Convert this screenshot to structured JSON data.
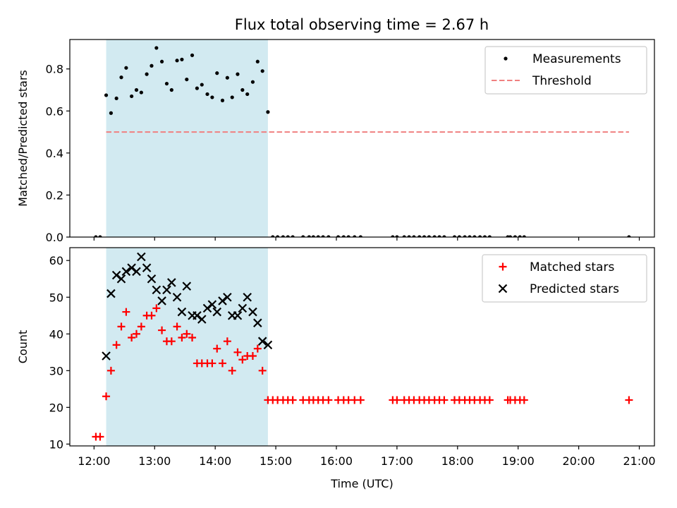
{
  "title": "Flux total observing time = 2.67 h",
  "colors": {
    "span": "#add8e6",
    "measurement": "#000000",
    "threshold": "#f08080",
    "matched": "#ff0000",
    "predicted": "#000000"
  },
  "chart_data": [
    {
      "type": "scatter",
      "ylabel": "Matched/Predicted stars",
      "xlim": [
        11.6,
        21.25
      ],
      "ylim": [
        0,
        0.94
      ],
      "yticks": [
        0.0,
        0.2,
        0.4,
        0.6,
        0.8
      ],
      "ytick_labels": [
        "0.0",
        "0.2",
        "0.4",
        "0.6",
        "0.8"
      ],
      "shaded_span": [
        12.2,
        14.87
      ],
      "threshold": {
        "y": 0.5,
        "x": [
          12.2,
          20.83
        ],
        "style": "dashed"
      },
      "legend": {
        "position": "top-right",
        "entries": [
          "Measurements",
          "Threshold"
        ]
      },
      "series": [
        {
          "name": "Measurements",
          "marker": "dot",
          "points": [
            [
              12.03,
              0
            ],
            [
              12.1,
              0
            ],
            [
              12.2,
              0.675
            ],
            [
              12.28,
              0.59
            ],
            [
              12.37,
              0.66
            ],
            [
              12.45,
              0.76
            ],
            [
              12.53,
              0.805
            ],
            [
              12.62,
              0.67
            ],
            [
              12.7,
              0.7
            ],
            [
              12.78,
              0.688
            ],
            [
              12.87,
              0.775
            ],
            [
              12.95,
              0.815
            ],
            [
              13.03,
              0.9
            ],
            [
              13.12,
              0.835
            ],
            [
              13.2,
              0.73
            ],
            [
              13.28,
              0.7
            ],
            [
              13.37,
              0.84
            ],
            [
              13.45,
              0.845
            ],
            [
              13.53,
              0.75
            ],
            [
              13.62,
              0.865
            ],
            [
              13.7,
              0.708
            ],
            [
              13.78,
              0.725
            ],
            [
              13.87,
              0.68
            ],
            [
              13.95,
              0.665
            ],
            [
              14.03,
              0.78
            ],
            [
              14.12,
              0.65
            ],
            [
              14.2,
              0.758
            ],
            [
              14.28,
              0.665
            ],
            [
              14.37,
              0.775
            ],
            [
              14.45,
              0.7
            ],
            [
              14.53,
              0.68
            ],
            [
              14.62,
              0.738
            ],
            [
              14.7,
              0.835
            ],
            [
              14.78,
              0.79
            ],
            [
              14.87,
              0.595
            ],
            [
              14.95,
              0
            ],
            [
              15.03,
              0
            ],
            [
              15.12,
              0
            ],
            [
              15.2,
              0
            ],
            [
              15.28,
              0
            ],
            [
              15.45,
              0
            ],
            [
              15.55,
              0
            ],
            [
              15.62,
              0
            ],
            [
              15.7,
              0
            ],
            [
              15.78,
              0
            ],
            [
              15.87,
              0
            ],
            [
              16.03,
              0
            ],
            [
              16.12,
              0
            ],
            [
              16.2,
              0
            ],
            [
              16.3,
              0
            ],
            [
              16.4,
              0
            ],
            [
              16.93,
              0
            ],
            [
              17.0,
              0
            ],
            [
              17.12,
              0
            ],
            [
              17.2,
              0
            ],
            [
              17.28,
              0
            ],
            [
              17.37,
              0
            ],
            [
              17.45,
              0
            ],
            [
              17.53,
              0
            ],
            [
              17.62,
              0
            ],
            [
              17.7,
              0
            ],
            [
              17.78,
              0
            ],
            [
              17.95,
              0
            ],
            [
              18.03,
              0
            ],
            [
              18.12,
              0
            ],
            [
              18.2,
              0
            ],
            [
              18.28,
              0
            ],
            [
              18.37,
              0
            ],
            [
              18.45,
              0
            ],
            [
              18.53,
              0
            ],
            [
              18.83,
              0
            ],
            [
              18.87,
              0
            ],
            [
              18.95,
              0
            ],
            [
              19.03,
              0
            ],
            [
              19.1,
              0
            ],
            [
              20.83,
              0
            ]
          ]
        }
      ]
    },
    {
      "type": "scatter",
      "xlabel": "Time (UTC)",
      "ylabel": "Count",
      "xlim": [
        11.6,
        21.25
      ],
      "ylim": [
        9.5,
        63.5
      ],
      "xticks": [
        12,
        13,
        14,
        15,
        16,
        17,
        18,
        19,
        20,
        21
      ],
      "xtick_labels": [
        "12:00",
        "13:00",
        "14:00",
        "15:00",
        "16:00",
        "17:00",
        "18:00",
        "19:00",
        "20:00",
        "21:00"
      ],
      "yticks": [
        10,
        20,
        30,
        40,
        50,
        60
      ],
      "ytick_labels": [
        "10",
        "20",
        "30",
        "40",
        "50",
        "60"
      ],
      "shaded_span": [
        12.2,
        14.87
      ],
      "legend": {
        "position": "top-right",
        "entries": [
          "Matched stars",
          "Predicted stars"
        ]
      },
      "series": [
        {
          "name": "Matched stars",
          "marker": "plus",
          "points": [
            [
              12.03,
              12
            ],
            [
              12.1,
              12
            ],
            [
              12.2,
              23
            ],
            [
              12.28,
              30
            ],
            [
              12.37,
              37
            ],
            [
              12.45,
              42
            ],
            [
              12.53,
              46
            ],
            [
              12.62,
              39
            ],
            [
              12.7,
              40
            ],
            [
              12.78,
              42
            ],
            [
              12.87,
              45
            ],
            [
              12.95,
              45
            ],
            [
              13.03,
              47
            ],
            [
              13.12,
              41
            ],
            [
              13.2,
              38
            ],
            [
              13.28,
              38
            ],
            [
              13.37,
              42
            ],
            [
              13.45,
              39
            ],
            [
              13.53,
              40
            ],
            [
              13.62,
              39
            ],
            [
              13.7,
              32
            ],
            [
              13.78,
              32
            ],
            [
              13.87,
              32
            ],
            [
              13.95,
              32
            ],
            [
              14.03,
              36
            ],
            [
              14.12,
              32
            ],
            [
              14.2,
              38
            ],
            [
              14.28,
              30
            ],
            [
              14.37,
              35
            ],
            [
              14.45,
              33
            ],
            [
              14.53,
              34
            ],
            [
              14.62,
              34
            ],
            [
              14.7,
              36
            ],
            [
              14.78,
              30
            ],
            [
              14.87,
              22
            ],
            [
              14.95,
              22
            ],
            [
              15.03,
              22
            ],
            [
              15.12,
              22
            ],
            [
              15.2,
              22
            ],
            [
              15.28,
              22
            ],
            [
              15.45,
              22
            ],
            [
              15.55,
              22
            ],
            [
              15.62,
              22
            ],
            [
              15.7,
              22
            ],
            [
              15.78,
              22
            ],
            [
              15.87,
              22
            ],
            [
              16.03,
              22
            ],
            [
              16.12,
              22
            ],
            [
              16.2,
              22
            ],
            [
              16.3,
              22
            ],
            [
              16.4,
              22
            ],
            [
              16.93,
              22
            ],
            [
              17.0,
              22
            ],
            [
              17.12,
              22
            ],
            [
              17.2,
              22
            ],
            [
              17.28,
              22
            ],
            [
              17.37,
              22
            ],
            [
              17.45,
              22
            ],
            [
              17.53,
              22
            ],
            [
              17.62,
              22
            ],
            [
              17.7,
              22
            ],
            [
              17.78,
              22
            ],
            [
              17.95,
              22
            ],
            [
              18.03,
              22
            ],
            [
              18.12,
              22
            ],
            [
              18.2,
              22
            ],
            [
              18.28,
              22
            ],
            [
              18.37,
              22
            ],
            [
              18.45,
              22
            ],
            [
              18.53,
              22
            ],
            [
              18.83,
              22
            ],
            [
              18.87,
              22
            ],
            [
              18.95,
              22
            ],
            [
              19.03,
              22
            ],
            [
              19.1,
              22
            ],
            [
              20.83,
              22
            ]
          ]
        },
        {
          "name": "Predicted stars",
          "marker": "x",
          "points": [
            [
              12.2,
              34
            ],
            [
              12.28,
              51
            ],
            [
              12.37,
              56
            ],
            [
              12.45,
              55
            ],
            [
              12.53,
              57
            ],
            [
              12.62,
              58
            ],
            [
              12.7,
              57
            ],
            [
              12.78,
              61
            ],
            [
              12.87,
              58
            ],
            [
              12.95,
              55
            ],
            [
              13.03,
              52
            ],
            [
              13.12,
              49
            ],
            [
              13.2,
              52
            ],
            [
              13.28,
              54
            ],
            [
              13.37,
              50
            ],
            [
              13.45,
              46
            ],
            [
              13.53,
              53
            ],
            [
              13.62,
              45
            ],
            [
              13.7,
              45
            ],
            [
              13.78,
              44
            ],
            [
              13.87,
              47
            ],
            [
              13.95,
              48
            ],
            [
              14.03,
              46
            ],
            [
              14.12,
              49
            ],
            [
              14.2,
              50
            ],
            [
              14.28,
              45
            ],
            [
              14.37,
              45
            ],
            [
              14.45,
              47
            ],
            [
              14.53,
              50
            ],
            [
              14.62,
              46
            ],
            [
              14.7,
              43
            ],
            [
              14.78,
              38
            ],
            [
              14.87,
              37
            ]
          ]
        }
      ]
    }
  ]
}
